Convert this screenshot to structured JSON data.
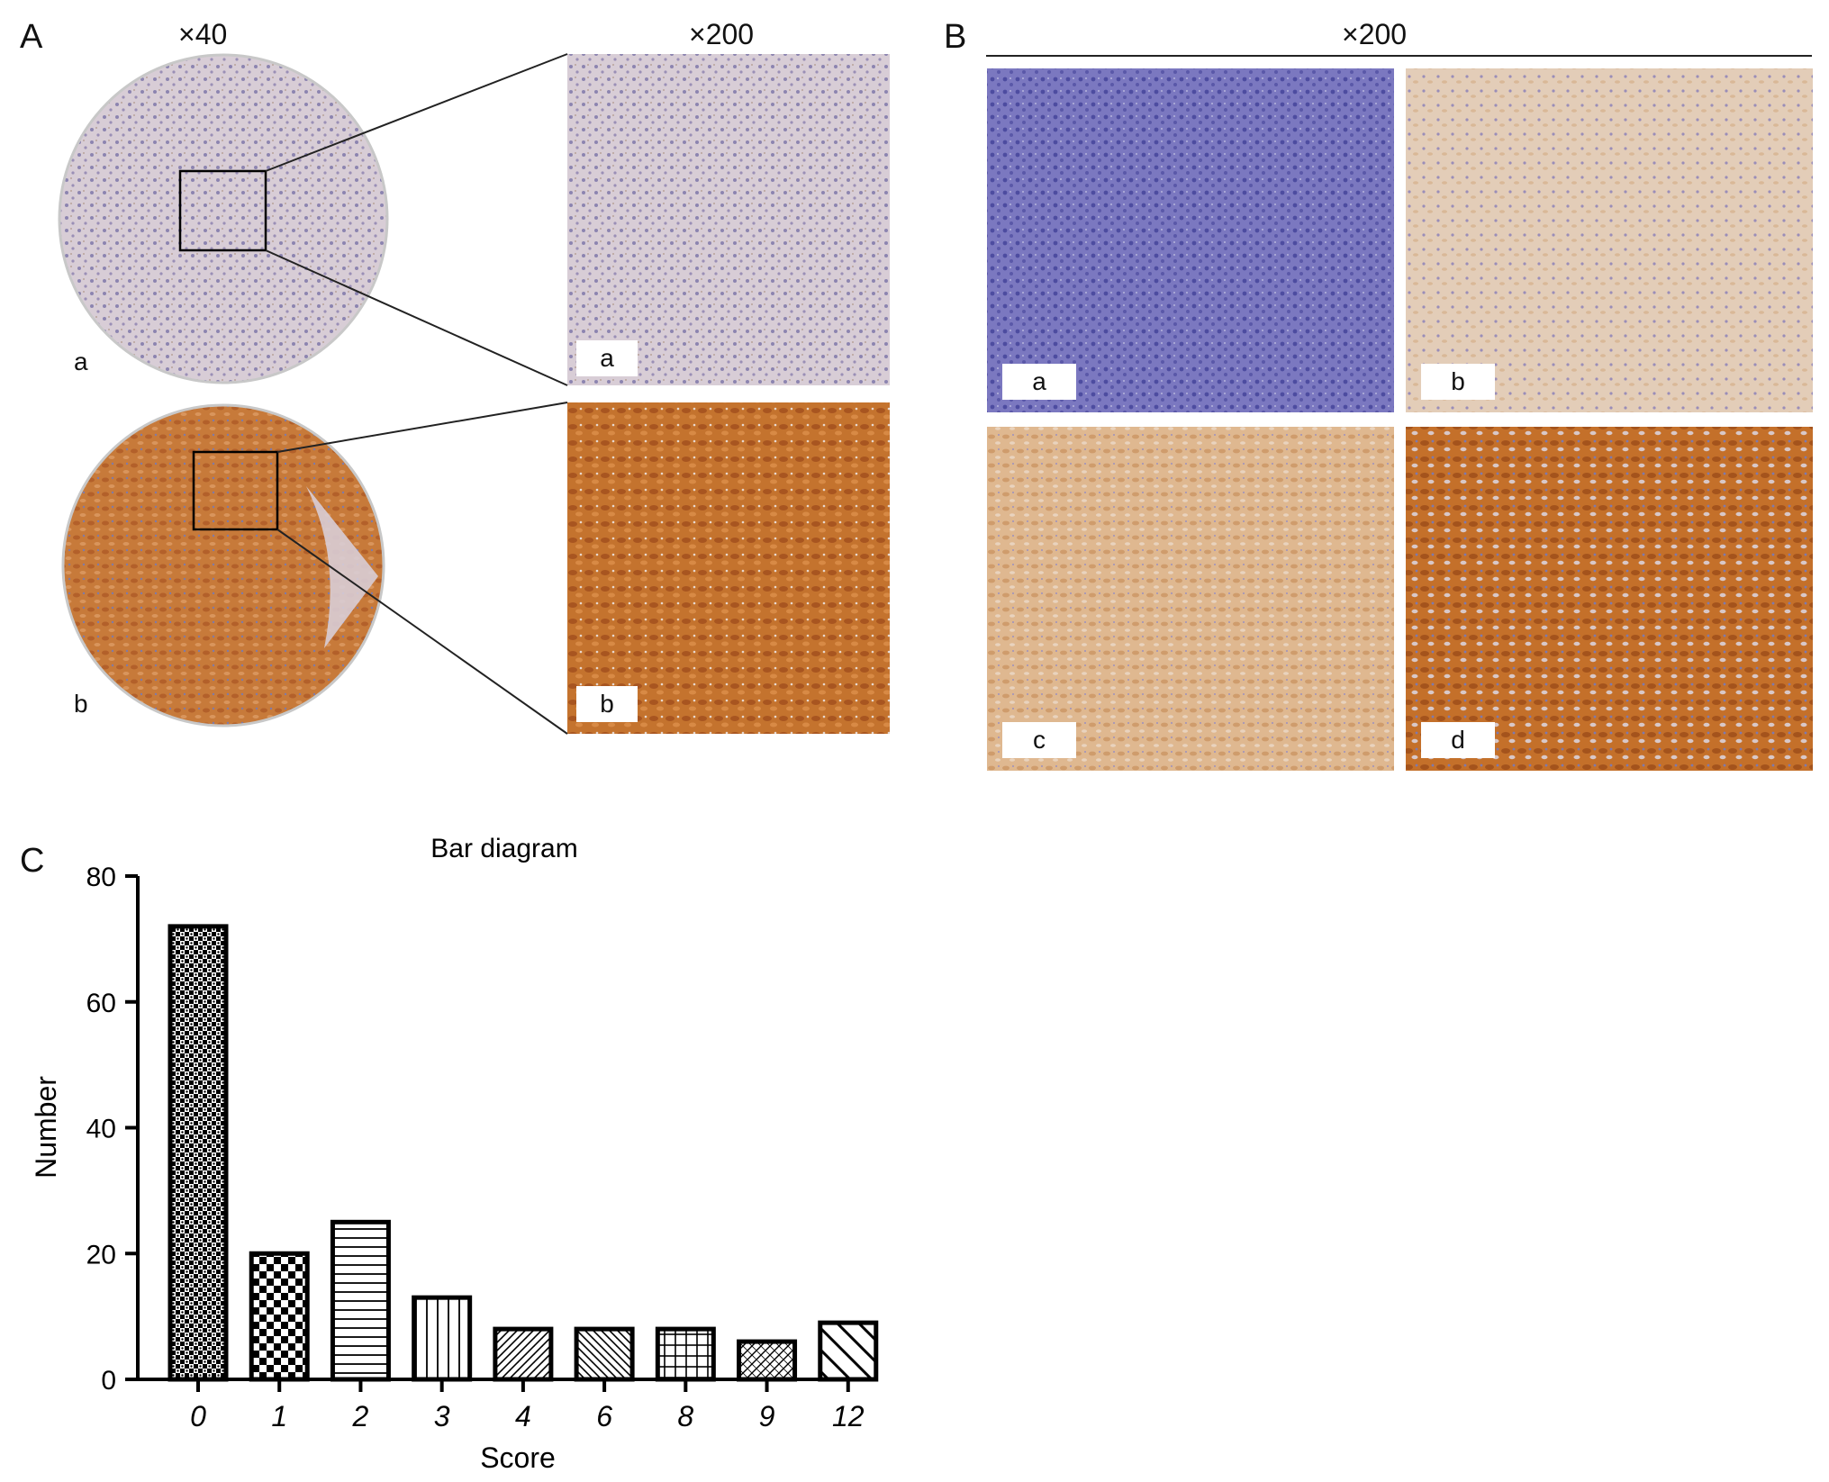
{
  "panelA": {
    "letter": "A",
    "low_mag": "×40",
    "high_mag": "×200",
    "core_labels": [
      "a",
      "b"
    ],
    "zoom_labels": [
      "a",
      "b"
    ]
  },
  "panelB": {
    "letter": "B",
    "mag": "×200",
    "tile_labels": [
      "a",
      "b",
      "c",
      "d"
    ]
  },
  "panelC": {
    "letter": "C"
  },
  "chart_data": {
    "type": "bar",
    "title": "Bar diagram",
    "xlabel": "Score",
    "ylabel": "Number",
    "categories": [
      "0",
      "1",
      "2",
      "3",
      "4",
      "6",
      "8",
      "9",
      "12"
    ],
    "values": [
      72,
      20,
      25,
      13,
      8,
      8,
      8,
      6,
      9
    ],
    "ylim": [
      0,
      80
    ],
    "yticks": [
      "0",
      "20",
      "40",
      "60",
      "80"
    ],
    "grid": false,
    "legend": "none"
  }
}
